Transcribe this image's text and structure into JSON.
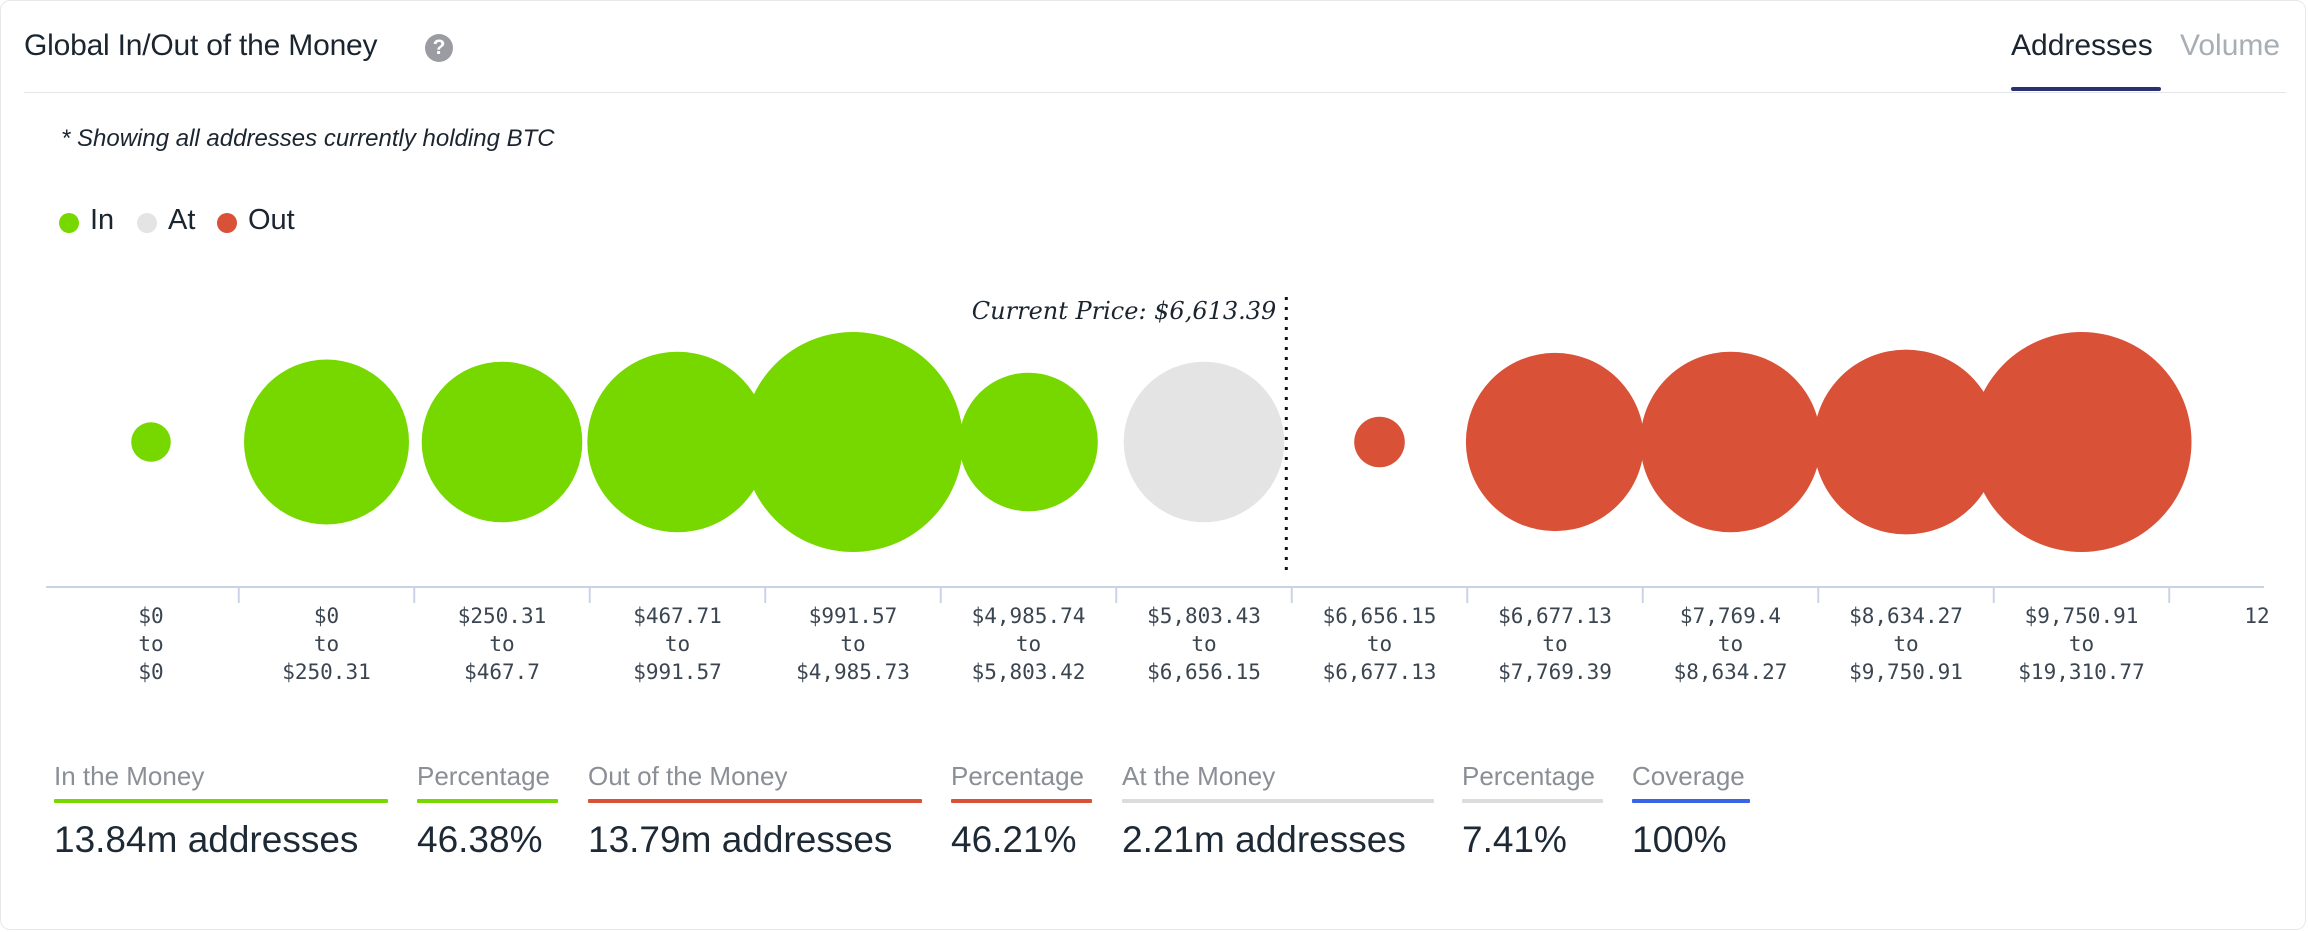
{
  "header": {
    "title": "Global In/Out of the Money",
    "help_icon": "question-circle-icon",
    "tabs": [
      {
        "label": "Addresses",
        "active": true
      },
      {
        "label": "Volume",
        "active": false
      }
    ]
  },
  "note": "* Showing all addresses currently holding BTC",
  "legend": [
    {
      "label": "In",
      "color": "#77d800"
    },
    {
      "label": "At",
      "color": "#e4e4e4"
    },
    {
      "label": "Out",
      "color": "#d95137"
    }
  ],
  "chart_data": {
    "type": "bubble",
    "current_price_label": "Current Price: $6,613.39",
    "current_price": 6613.39,
    "categories": [
      {
        "from": "$0",
        "to": "$0",
        "status": "in",
        "size_rel": 0.18
      },
      {
        "from": "$0",
        "to": "$250.31",
        "status": "in",
        "size_rel": 0.75
      },
      {
        "from": "$250.31",
        "to": "$467.7",
        "status": "in",
        "size_rel": 0.73
      },
      {
        "from": "$467.71",
        "to": "$991.57",
        "status": "in",
        "size_rel": 0.82
      },
      {
        "from": "$991.57",
        "to": "$4,985.73",
        "status": "in",
        "size_rel": 1.0
      },
      {
        "from": "$4,985.74",
        "to": "$5,803.42",
        "status": "in",
        "size_rel": 0.63
      },
      {
        "from": "$5,803.43",
        "to": "$6,656.15",
        "status": "at",
        "size_rel": 0.73
      },
      {
        "from": "$6,656.15",
        "to": "$6,677.13",
        "status": "out",
        "size_rel": 0.23
      },
      {
        "from": "$6,677.13",
        "to": "$7,769.39",
        "status": "out",
        "size_rel": 0.81
      },
      {
        "from": "$7,769.4",
        "to": "$8,634.27",
        "status": "out",
        "size_rel": 0.82
      },
      {
        "from": "$8,634.27",
        "to": "$9,750.91",
        "status": "out",
        "size_rel": 0.84
      },
      {
        "from": "$9,750.91",
        "to": "$19,310.77",
        "status": "out",
        "size_rel": 1.0
      }
    ],
    "overflow_tick": "12"
  },
  "stats": [
    {
      "label": "In the Money",
      "value": "13.84m addresses",
      "color": "#77d800"
    },
    {
      "label": "Percentage",
      "value": "46.38%",
      "color": "#77d800"
    },
    {
      "label": "Out of the Money",
      "value": "13.79m addresses",
      "color": "#d95137"
    },
    {
      "label": "Percentage",
      "value": "46.21%",
      "color": "#d95137"
    },
    {
      "label": "At the Money",
      "value": "2.21m addresses",
      "color": "#dcdcdc"
    },
    {
      "label": "Percentage",
      "value": "7.41%",
      "color": "#dcdcdc"
    },
    {
      "label": "Coverage",
      "value": "100%",
      "color": "#3a64e8"
    }
  ]
}
